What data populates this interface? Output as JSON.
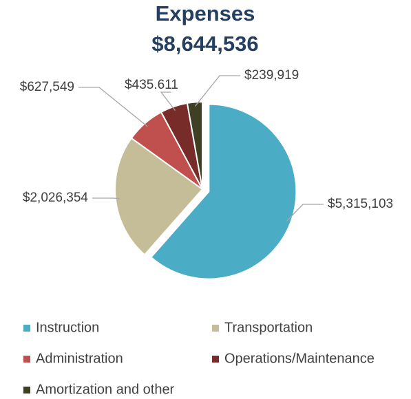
{
  "chart_data": {
    "type": "pie",
    "title": "Expenses",
    "subtitle": "$8,644,536",
    "categories": [
      "Instruction",
      "Transportation",
      "Administration",
      "Operations/Maintenance",
      "Amortization and other"
    ],
    "values": [
      5315103,
      2026354,
      627549,
      435611,
      239919
    ],
    "value_labels": [
      "$5,315,103",
      "$2,026,354",
      "$627,549",
      "$435.611",
      "$239,919"
    ],
    "colors": [
      "#4bacc6",
      "#c4bd97",
      "#c0504d",
      "#772c2a",
      "#3f3f26"
    ],
    "legend": "bottom"
  }
}
